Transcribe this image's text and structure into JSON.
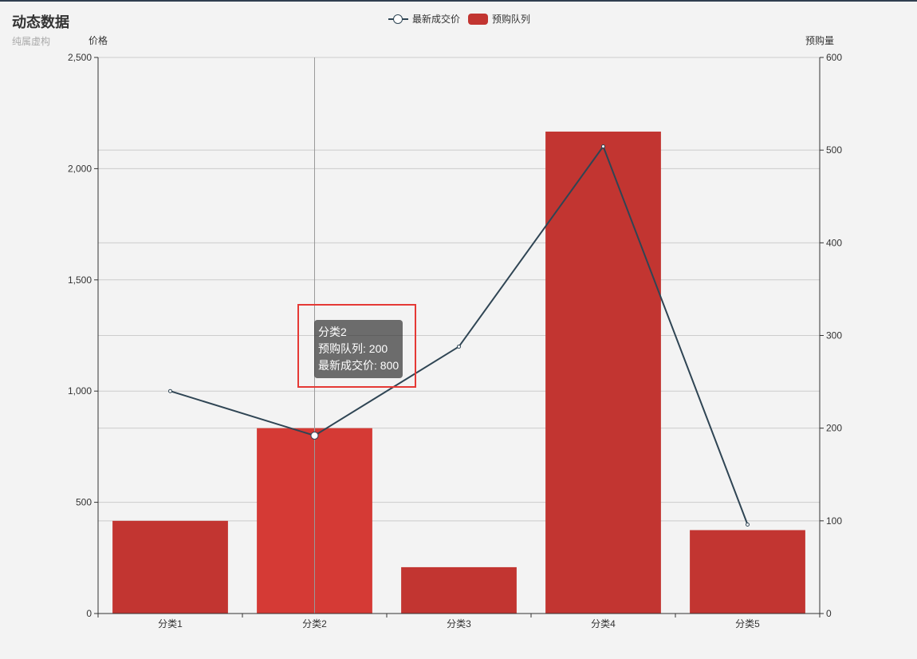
{
  "title": "动态数据",
  "subtitle": "纯属虚构",
  "legend": {
    "line": "最新成交价",
    "bar": "预购队列"
  },
  "colors": {
    "bar": "#c23531",
    "bar_emphasis": "#d53a35",
    "line": "#2f4554",
    "axis": "#333333",
    "grid": "#cccccc",
    "title": "#333333",
    "subtitle": "#aaaaaa",
    "highlight": "#e53935"
  },
  "chart_data": {
    "type": "bar",
    "categories": [
      "分类1",
      "分类2",
      "分类3",
      "分类4",
      "分类5"
    ],
    "series": [
      {
        "name": "预购队列",
        "type": "bar",
        "yAxis": "right",
        "values": [
          100,
          200,
          50,
          520,
          90
        ]
      },
      {
        "name": "最新成交价",
        "type": "line",
        "yAxis": "left",
        "values": [
          1000,
          800,
          1200,
          2100,
          400
        ]
      }
    ],
    "yAxisLeft": {
      "label": "价格",
      "min": 0,
      "max": 2500,
      "ticks": [
        "0",
        "500",
        "1,000",
        "1,500",
        "2,000",
        "2,500"
      ]
    },
    "yAxisRight": {
      "label": "预购量",
      "min": 0,
      "max": 600,
      "ticks": [
        "0",
        "100",
        "200",
        "300",
        "400",
        "500",
        "600"
      ]
    },
    "legend_position": "top-center",
    "grid": true
  },
  "tooltip": {
    "category": "分类2",
    "line1": "预购队列: 200",
    "line2": "最新成交价: 800",
    "active_index": 1
  }
}
